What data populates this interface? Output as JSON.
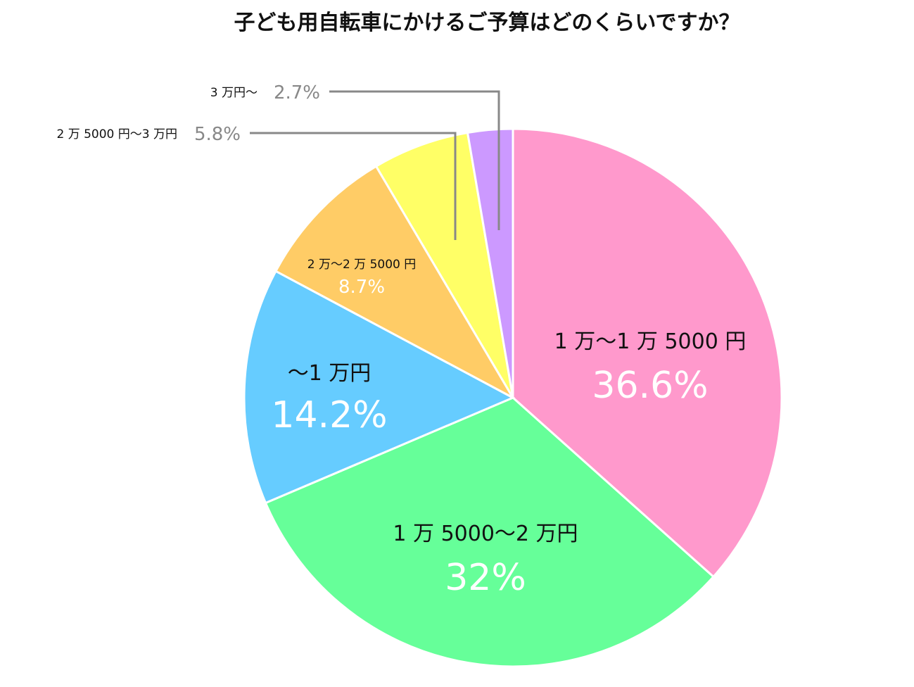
{
  "chart_data": {
    "type": "pie",
    "title": "子ども用自転車にかけるご予算はどのくらいですか？",
    "slices": [
      {
        "label": "1 万〜1 万 5000 円",
        "value": 36.6,
        "value_label": "36.6%",
        "color": "#ff99cc"
      },
      {
        "label": "1 万 5000〜2 万円",
        "value": 32.0,
        "value_label": "32%",
        "color": "#66ff99"
      },
      {
        "label": "〜1 万円",
        "value": 14.2,
        "value_label": "14.2%",
        "color": "#66ccff"
      },
      {
        "label": "2 万〜2 万 5000 円",
        "value": 8.7,
        "value_label": "8.7%",
        "color": "#ffcc66"
      },
      {
        "label": "2 万 5000 円〜3 万円",
        "value": 5.8,
        "value_label": "5.8%",
        "color": "#ffff66"
      },
      {
        "label": "3 万円〜",
        "value": 2.7,
        "value_label": "2.7%",
        "color": "#cc99ff"
      }
    ],
    "start": "12 o'clock",
    "direction": "clockwise",
    "legend": "none"
  },
  "colors": {
    "leader_line": "#888888",
    "outside_value_text": "#888888",
    "inside_value_text": "#ffffff"
  }
}
